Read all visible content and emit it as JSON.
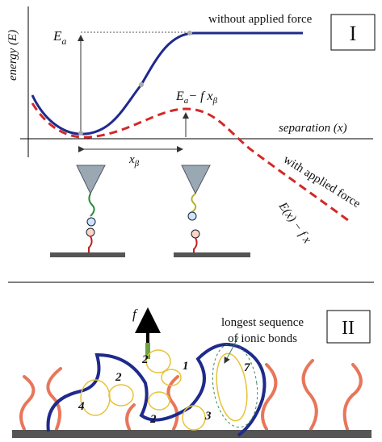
{
  "panel_1": {
    "label": "I",
    "y_axis": "energy (E)",
    "x_axis": "separation (x)",
    "curve_no_force": "without applied force",
    "curve_force": "with applied force",
    "barrier": {
      "base": "E",
      "sub": "a"
    },
    "reduced_barrier": {
      "base": "E",
      "sub": "a",
      "rest": "− f x",
      "rest_sub": "β"
    },
    "distance": {
      "base": "x",
      "sub": "β"
    },
    "tilted_energy": "E(x) − f x"
  },
  "panel_2": {
    "label": "II",
    "force": "f",
    "callout_line1": "longest sequence",
    "callout_line2": "of ionic bonds",
    "bond_counts": [
      2,
      1,
      7,
      2,
      4,
      2,
      3
    ]
  }
}
